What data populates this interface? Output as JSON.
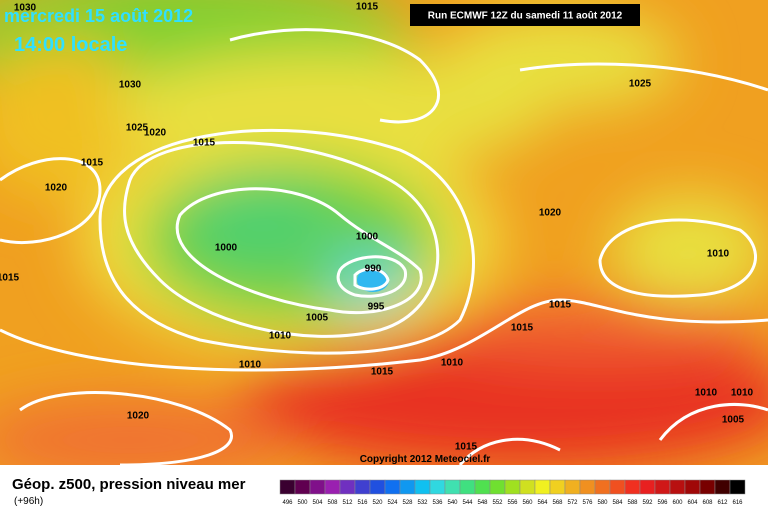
{
  "header": {
    "date": "mercredi 15 août 2012",
    "time": "14:00 locale",
    "run": "Run ECMWF 12Z du samedi 11 août 2012"
  },
  "isobar_labels": [
    "1030",
    "1015",
    "1030",
    "1025",
    "1020",
    "1015",
    "1015",
    "1020",
    "1015",
    "1000",
    "1000",
    "990",
    "995",
    "1005",
    "1010",
    "1010",
    "1015",
    "1010",
    "1020",
    "1015",
    "1025",
    "1020",
    "1010",
    "1015",
    "1015",
    "1010",
    "1010",
    "1005"
  ],
  "copyright": "Copyright 2012 Meteociel.fr",
  "footer": {
    "title": "Géop. z500, pression niveau mer",
    "lead": "(+96h)"
  },
  "scale": {
    "labels": [
      "496",
      "500",
      "504",
      "508",
      "512",
      "516",
      "520",
      "524",
      "528",
      "532",
      "536",
      "540",
      "544",
      "548",
      "552",
      "556",
      "560",
      "564",
      "568",
      "572",
      "576",
      "580",
      "584",
      "588",
      "592",
      "596",
      "600",
      "604",
      "608",
      "612",
      "616"
    ]
  }
}
